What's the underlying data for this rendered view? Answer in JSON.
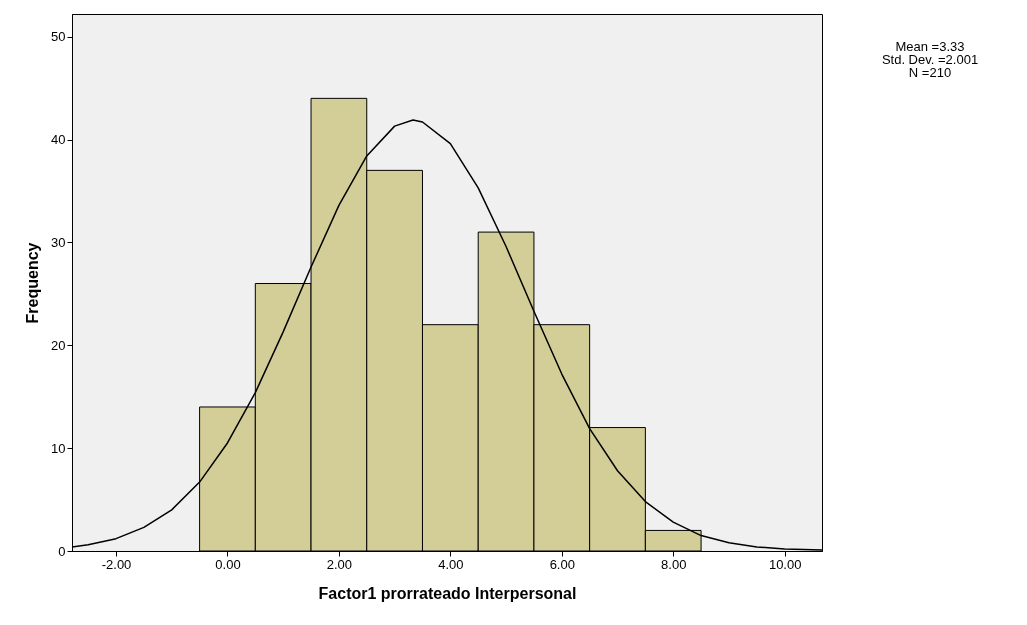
{
  "chart_data": {
    "type": "histogram",
    "xlabel": "Factor1 prorrateado Interpersonal",
    "ylabel": "Frequency",
    "bins": [
      -0.5,
      0.5,
      1.5,
      2.5,
      3.5,
      4.5,
      5.5,
      6.5,
      7.5,
      8.5
    ],
    "values": [
      14,
      26,
      44,
      37,
      22,
      31,
      22,
      12,
      2
    ],
    "color": "#d3ce97",
    "xlim": [
      -2.79,
      10.67
    ],
    "xticks": [
      {
        "value": -2,
        "label": "-2.00"
      },
      {
        "value": 0,
        "label": "0.00"
      },
      {
        "value": 2,
        "label": "2.00"
      },
      {
        "value": 4,
        "label": "4.00"
      },
      {
        "value": 6,
        "label": "6.00"
      },
      {
        "value": 8,
        "label": "8.00"
      },
      {
        "value": 10,
        "label": "10.00"
      }
    ],
    "ylim": [
      0,
      52.2
    ],
    "yticks": [
      0,
      10,
      20,
      30,
      40,
      50
    ],
    "grid": false,
    "series": [
      {
        "type": "line",
        "color": "#000000",
        "x": [
          -2.79,
          -2.5,
          -2,
          -1.5,
          -1,
          -0.5,
          0,
          0.5,
          1,
          1.5,
          2,
          2.5,
          3,
          3.33,
          3.5,
          4,
          4.5,
          5,
          5.5,
          6,
          6.5,
          7,
          7.5,
          8,
          8.5,
          9,
          9.5,
          10,
          10.67
        ],
        "values": [
          0.4,
          0.6,
          1.2,
          2.3,
          4,
          6.7,
          10.5,
          15.4,
          21.3,
          27.6,
          33.6,
          38.4,
          41.3,
          41.9,
          41.7,
          39.6,
          35.3,
          29.6,
          23.3,
          17.2,
          11.9,
          7.8,
          4.8,
          2.8,
          1.5,
          0.8,
          0.4,
          0.2,
          0.1
        ]
      }
    ],
    "annotations": [
      "Mean =3.33",
      "Std. Dev. =2.001",
      "N =210"
    ]
  }
}
